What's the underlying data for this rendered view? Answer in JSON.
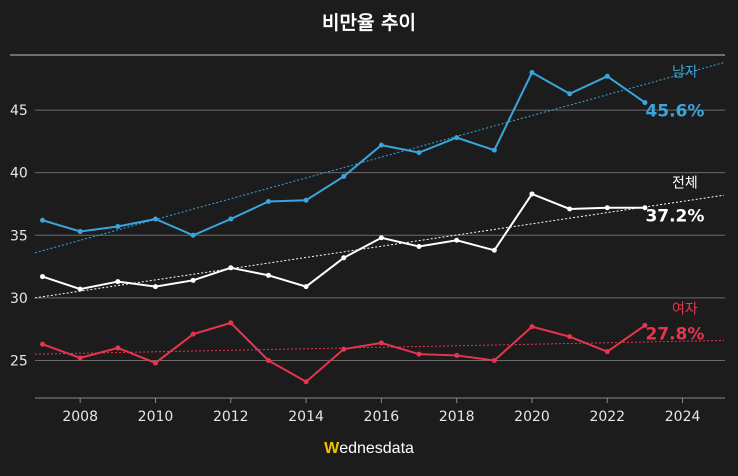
{
  "chart_data": {
    "type": "line",
    "title": "비만율 추이",
    "xlabel": "",
    "ylabel": "",
    "xlim": [
      2006.8,
      2025.1
    ],
    "ylim": [
      22,
      49.4
    ],
    "x_ticks": [
      2008,
      2010,
      2012,
      2014,
      2016,
      2018,
      2020,
      2022,
      2024
    ],
    "y_ticks": [
      25,
      30,
      35,
      40,
      45
    ],
    "grid": true,
    "x": [
      2007,
      2008,
      2009,
      2010,
      2011,
      2012,
      2013,
      2014,
      2015,
      2016,
      2017,
      2018,
      2019,
      2020,
      2021,
      2022,
      2023
    ],
    "series": [
      {
        "name": "남자",
        "end_label": "45.6%",
        "color": "#3aa5dc",
        "values": [
          36.2,
          35.3,
          35.7,
          36.3,
          35.0,
          36.3,
          37.7,
          37.8,
          39.7,
          42.2,
          41.6,
          42.8,
          41.8,
          48.0,
          46.3,
          47.7,
          45.6
        ],
        "trend": [
          [
            2006.8,
            33.6
          ],
          [
            2025.1,
            48.8
          ]
        ]
      },
      {
        "name": "전체",
        "end_label": "37.2%",
        "color": "#ffffff",
        "values": [
          31.7,
          30.7,
          31.3,
          30.9,
          31.4,
          32.4,
          31.8,
          30.9,
          33.2,
          34.8,
          34.1,
          34.6,
          33.8,
          38.3,
          37.1,
          37.2,
          37.2
        ],
        "trend": [
          [
            2006.8,
            30.0
          ],
          [
            2025.1,
            38.2
          ]
        ]
      },
      {
        "name": "여자",
        "end_label": "27.8%",
        "color": "#e8344e",
        "values": [
          26.3,
          25.2,
          26.0,
          24.8,
          27.1,
          28.0,
          25.0,
          23.3,
          25.9,
          26.4,
          25.5,
          25.4,
          25.0,
          27.7,
          26.9,
          25.7,
          27.8
        ],
        "trend": [
          [
            2006.8,
            25.5
          ],
          [
            2025.1,
            26.6
          ]
        ]
      }
    ]
  },
  "logo": {
    "first": "W",
    "rest": "ednesdata"
  }
}
